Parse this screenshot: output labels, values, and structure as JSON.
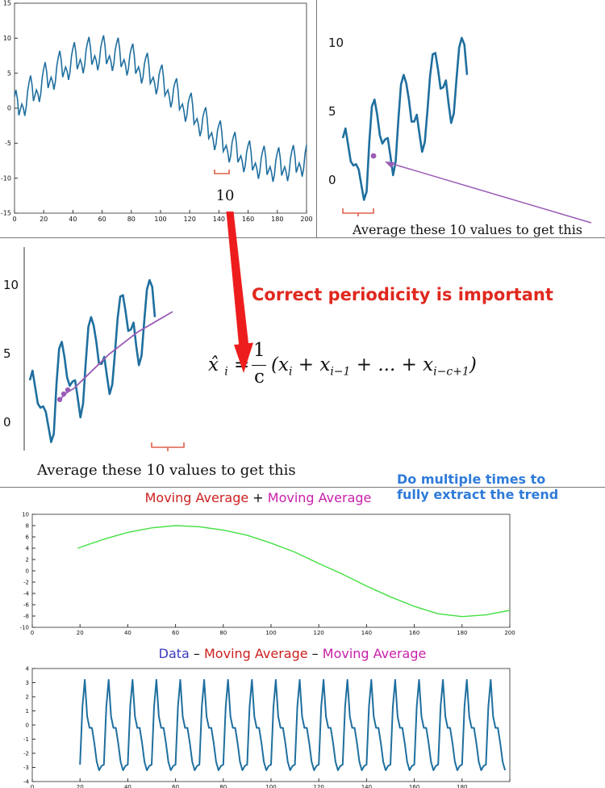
{
  "colors": {
    "series": "#1f6f9f",
    "trend": "#9a5cb6",
    "mavg_red": "#cc1f1f",
    "mavg_magenta": "#c81fa9",
    "data_blue": "#3b3bbf",
    "green": "#44e044",
    "arrow_red": "#ee1d1d",
    "annotation_red": "#e0281e",
    "annotation_blue": "#2f7bd9"
  },
  "panel1": {
    "window_label": "10",
    "chart_data": {
      "type": "line",
      "xlim": [
        0,
        200
      ],
      "ylim": [
        -15,
        15
      ],
      "xticks": [
        "0",
        "20",
        "40",
        "60",
        "80",
        "100",
        "120",
        "140",
        "160",
        "180",
        "200"
      ],
      "yticks": [
        "15",
        "10",
        "5",
        "0",
        "-5",
        "-10",
        "-15"
      ],
      "series": [
        {
          "formula": "8*sin(pi*x/120) + 3*seasonal(x/10)",
          "x_range": [
            0,
            200
          ],
          "period": 10
        }
      ],
      "bracket": {
        "x_range": [
          137,
          147
        ]
      }
    }
  },
  "panel2": {
    "caption": "Average these 10 values to get this",
    "chart_data": {
      "type": "line",
      "yticks": [
        "10",
        "5",
        "0"
      ],
      "series": [
        {
          "values": [
            3,
            3.7,
            2.5,
            1.3,
            1,
            1.1,
            0.7,
            -0.4,
            -1.5,
            -0.9,
            2.7,
            5.3,
            5.8,
            4.7,
            3.2,
            2.6,
            2.9,
            3,
            1.7,
            0.3,
            1.3,
            4.3,
            6.9,
            7.6,
            7,
            5.8,
            4.2,
            4.2,
            4.7,
            3.3,
            2,
            2.7,
            5,
            7.5,
            9.1,
            9.2,
            8,
            6.6,
            6.7,
            7.2,
            5.5,
            4.1,
            4.8,
            7.3,
            9.6,
            10.3,
            9.8,
            7.6
          ]
        }
      ],
      "highlight_point": {
        "index": 4,
        "value": 1.7
      }
    }
  },
  "panel3": {
    "caption": "Average these 10 values to get this",
    "chart_data": {
      "type": "line",
      "yticks": [
        "10",
        "5",
        "0"
      ],
      "series": [
        {
          "values": [
            3,
            3.7,
            2.5,
            1.3,
            1,
            1.1,
            0.7,
            -0.4,
            -1.5,
            -0.9,
            2.7,
            5.3,
            5.8,
            4.7,
            3.2,
            2.6,
            2.9,
            3,
            1.7,
            0.3,
            1.3,
            4.3,
            6.9,
            7.6,
            7,
            5.8,
            4.2,
            4.2,
            4.7,
            3.3,
            2,
            2.7,
            5,
            7.5,
            9.1,
            9.2,
            8,
            6.6,
            6.7,
            7.2,
            5.5,
            4.1,
            4.8,
            7.3,
            9.6,
            10.3,
            9.8,
            7.6
          ]
        },
        {
          "values": [
            1.6,
            2.1,
            2.4,
            2.9,
            3.4,
            3.9,
            4.4,
            4.9,
            5.3,
            5.7,
            6.1,
            6.5,
            6.8,
            7.1,
            7.4,
            7.7,
            8
          ]
        }
      ],
      "highlight_points": [
        1.6,
        2.0,
        2.3
      ]
    }
  },
  "annotations": {
    "periodicity": "Correct periodicity is important",
    "multiple_line1": "Do multiple times to",
    "multiple_line2": "fully extract the trend"
  },
  "formula": {
    "hat": "̂",
    "x": "x",
    "i": "i",
    "one": "1",
    "c": "c",
    "body_open": "(x",
    "sub_i": "i",
    "plus1": " + x",
    "sub_i1": "i−1",
    "plus2": " + ... + x",
    "sub_last": "i−c+1",
    "close": ")"
  },
  "panel4": {
    "title": {
      "part1": "Moving Average",
      "sep": " + ",
      "part2": "Moving Average"
    },
    "chart_data": {
      "type": "line",
      "xlim": [
        0,
        200
      ],
      "ylim": [
        -10,
        10
      ],
      "xticks": [
        "0",
        "20",
        "40",
        "60",
        "80",
        "100",
        "120",
        "140",
        "160",
        "180",
        "200"
      ],
      "yticks": [
        "10",
        "8",
        "6",
        "4",
        "2",
        "0",
        "-2",
        "-4",
        "-6",
        "-8",
        "-10"
      ],
      "series": [
        {
          "x": [
            19,
            30,
            40,
            50,
            60,
            70,
            80,
            90,
            100,
            110,
            120,
            130,
            140,
            150,
            160,
            170,
            180,
            190,
            200
          ],
          "values": [
            4,
            5.6,
            6.8,
            7.6,
            8,
            7.8,
            7.2,
            6.3,
            4.9,
            3.3,
            1.3,
            -0.6,
            -2.7,
            -4.6,
            -6.3,
            -7.6,
            -8.1,
            -7.8,
            -7
          ]
        }
      ]
    }
  },
  "panel5": {
    "title": {
      "part1": "Data",
      "sep1": " – ",
      "part2": "Moving Average",
      "sep2": " – ",
      "part3": "Moving Average"
    },
    "chart_data": {
      "type": "line",
      "xlim": [
        0,
        200
      ],
      "ylim": [
        -4,
        4
      ],
      "xticks": [
        "0",
        "20",
        "40",
        "60",
        "80",
        "100",
        "120",
        "140",
        "160",
        "180"
      ],
      "yticks": [
        "4",
        "3",
        "2",
        "1",
        "0",
        "-1",
        "-2",
        "-3",
        "-4"
      ],
      "series": [
        {
          "x_range": [
            20,
            198
          ],
          "period": 10,
          "cycle": [
            -2.8,
            1.3,
            3.2,
            0.6,
            -0.2,
            -0.2,
            -1.3,
            -2.6,
            -3.2,
            -2.9
          ]
        }
      ]
    }
  }
}
